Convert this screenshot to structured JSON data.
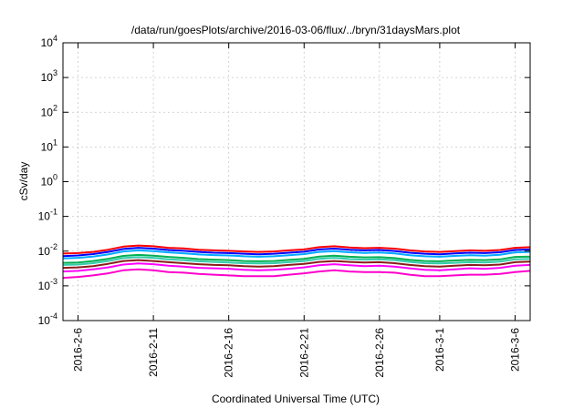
{
  "chart_data": {
    "type": "line",
    "title": "/data/run/goesPlots/archive/2016-03-06/flux/../bryn/31daysMars.plot",
    "xlabel": "Coordinated Universal Time (UTC)",
    "ylabel": "cSv/day",
    "yscale": "log",
    "ylim": [
      0.0001,
      10000
    ],
    "xlim": [
      "2016-02-05",
      "2016-03-07"
    ],
    "grid": true,
    "legend": "none",
    "x_ticks": [
      "2016-2-6",
      "2016-2-11",
      "2016-2-16",
      "2016-2-21",
      "2016-2-26",
      "2016-3-1",
      "2016-3-6"
    ],
    "y_ticks": [
      {
        "base": "10",
        "exp": "-4"
      },
      {
        "base": "10",
        "exp": "-3"
      },
      {
        "base": "10",
        "exp": "-2"
      },
      {
        "base": "10",
        "exp": "-1"
      },
      {
        "base": "10",
        "exp": "0"
      },
      {
        "base": "10",
        "exp": "1"
      },
      {
        "base": "10",
        "exp": "2"
      },
      {
        "base": "10",
        "exp": "3"
      },
      {
        "base": "10",
        "exp": "4"
      }
    ],
    "x_days": [
      0,
      1,
      2,
      3,
      4,
      5,
      6,
      7,
      8,
      9,
      10,
      11,
      12,
      13,
      14,
      15,
      16,
      17,
      18,
      19,
      20,
      21,
      22,
      23,
      24,
      25,
      26,
      27,
      28,
      29,
      30,
      31
    ],
    "series": [
      {
        "color": "#ff0000",
        "values": [
          0.0085,
          0.0088,
          0.0095,
          0.011,
          0.0135,
          0.0145,
          0.0138,
          0.0125,
          0.012,
          0.011,
          0.0105,
          0.0102,
          0.0098,
          0.0095,
          0.0098,
          0.0105,
          0.0112,
          0.013,
          0.0138,
          0.0128,
          0.0122,
          0.0125,
          0.0118,
          0.0105,
          0.0098,
          0.0095,
          0.01,
          0.0105,
          0.0102,
          0.0108,
          0.0125,
          0.013
        ]
      },
      {
        "color": "#0000ff",
        "values": [
          0.0072,
          0.0075,
          0.0082,
          0.0095,
          0.0115,
          0.0125,
          0.0118,
          0.0108,
          0.0102,
          0.0095,
          0.009,
          0.0088,
          0.0084,
          0.0081,
          0.0084,
          0.009,
          0.0096,
          0.0112,
          0.0118,
          0.011,
          0.0105,
          0.0108,
          0.0101,
          0.009,
          0.0084,
          0.0081,
          0.0086,
          0.009,
          0.0088,
          0.0093,
          0.0108,
          0.0112
        ]
      },
      {
        "color": "#00aaff",
        "values": [
          0.0062,
          0.0064,
          0.007,
          0.008,
          0.0098,
          0.0105,
          0.01,
          0.0092,
          0.0087,
          0.008,
          0.0077,
          0.0075,
          0.0071,
          0.0069,
          0.0071,
          0.0076,
          0.0082,
          0.0095,
          0.01,
          0.0093,
          0.0089,
          0.0091,
          0.0086,
          0.0076,
          0.0071,
          0.0069,
          0.0073,
          0.0076,
          0.0074,
          0.0079,
          0.0092,
          0.0095
        ]
      },
      {
        "color": "#00b050",
        "values": [
          0.0046,
          0.0047,
          0.0052,
          0.006,
          0.0073,
          0.0078,
          0.0074,
          0.0068,
          0.0064,
          0.0059,
          0.0057,
          0.0055,
          0.0052,
          0.0051,
          0.0052,
          0.0056,
          0.006,
          0.007,
          0.0074,
          0.0069,
          0.0066,
          0.0067,
          0.0063,
          0.0056,
          0.0052,
          0.0051,
          0.0054,
          0.0056,
          0.0055,
          0.0058,
          0.0068,
          0.007
        ]
      },
      {
        "color": "#33ccaa",
        "values": [
          0.004,
          0.0041,
          0.0045,
          0.0052,
          0.0063,
          0.0067,
          0.0064,
          0.0058,
          0.0055,
          0.0051,
          0.0049,
          0.0047,
          0.0045,
          0.0044,
          0.0045,
          0.0048,
          0.0052,
          0.006,
          0.0064,
          0.0059,
          0.0057,
          0.0058,
          0.0055,
          0.0049,
          0.0045,
          0.0044,
          0.0046,
          0.0048,
          0.0047,
          0.005,
          0.0058,
          0.006
        ]
      },
      {
        "color": "#8b1a1a",
        "values": [
          0.0033,
          0.0034,
          0.0037,
          0.0043,
          0.0052,
          0.0055,
          0.0052,
          0.0048,
          0.0045,
          0.0042,
          0.004,
          0.0039,
          0.0037,
          0.0036,
          0.0037,
          0.004,
          0.0043,
          0.0049,
          0.0052,
          0.0049,
          0.0047,
          0.0048,
          0.0045,
          0.004,
          0.0037,
          0.0036,
          0.0038,
          0.004,
          0.0039,
          0.0041,
          0.0048,
          0.005
        ]
      },
      {
        "color": "#ff00ff",
        "values": [
          0.0026,
          0.0027,
          0.003,
          0.0034,
          0.0041,
          0.0044,
          0.0042,
          0.0038,
          0.0036,
          0.0033,
          0.0032,
          0.0031,
          0.0029,
          0.0028,
          0.0029,
          0.0031,
          0.0034,
          0.0039,
          0.0042,
          0.0039,
          0.0037,
          0.0038,
          0.0036,
          0.0032,
          0.0029,
          0.0028,
          0.003,
          0.0032,
          0.0031,
          0.0033,
          0.0038,
          0.004
        ]
      },
      {
        "color": "#ff00cc",
        "values": [
          0.0017,
          0.0018,
          0.002,
          0.0023,
          0.0028,
          0.003,
          0.0028,
          0.0025,
          0.0024,
          0.0022,
          0.0021,
          0.002,
          0.0019,
          0.0019,
          0.0019,
          0.0021,
          0.0023,
          0.0026,
          0.0028,
          0.0026,
          0.0025,
          0.0025,
          0.0024,
          0.0021,
          0.0019,
          0.0019,
          0.002,
          0.0021,
          0.0021,
          0.0022,
          0.0025,
          0.0027
        ]
      }
    ]
  }
}
